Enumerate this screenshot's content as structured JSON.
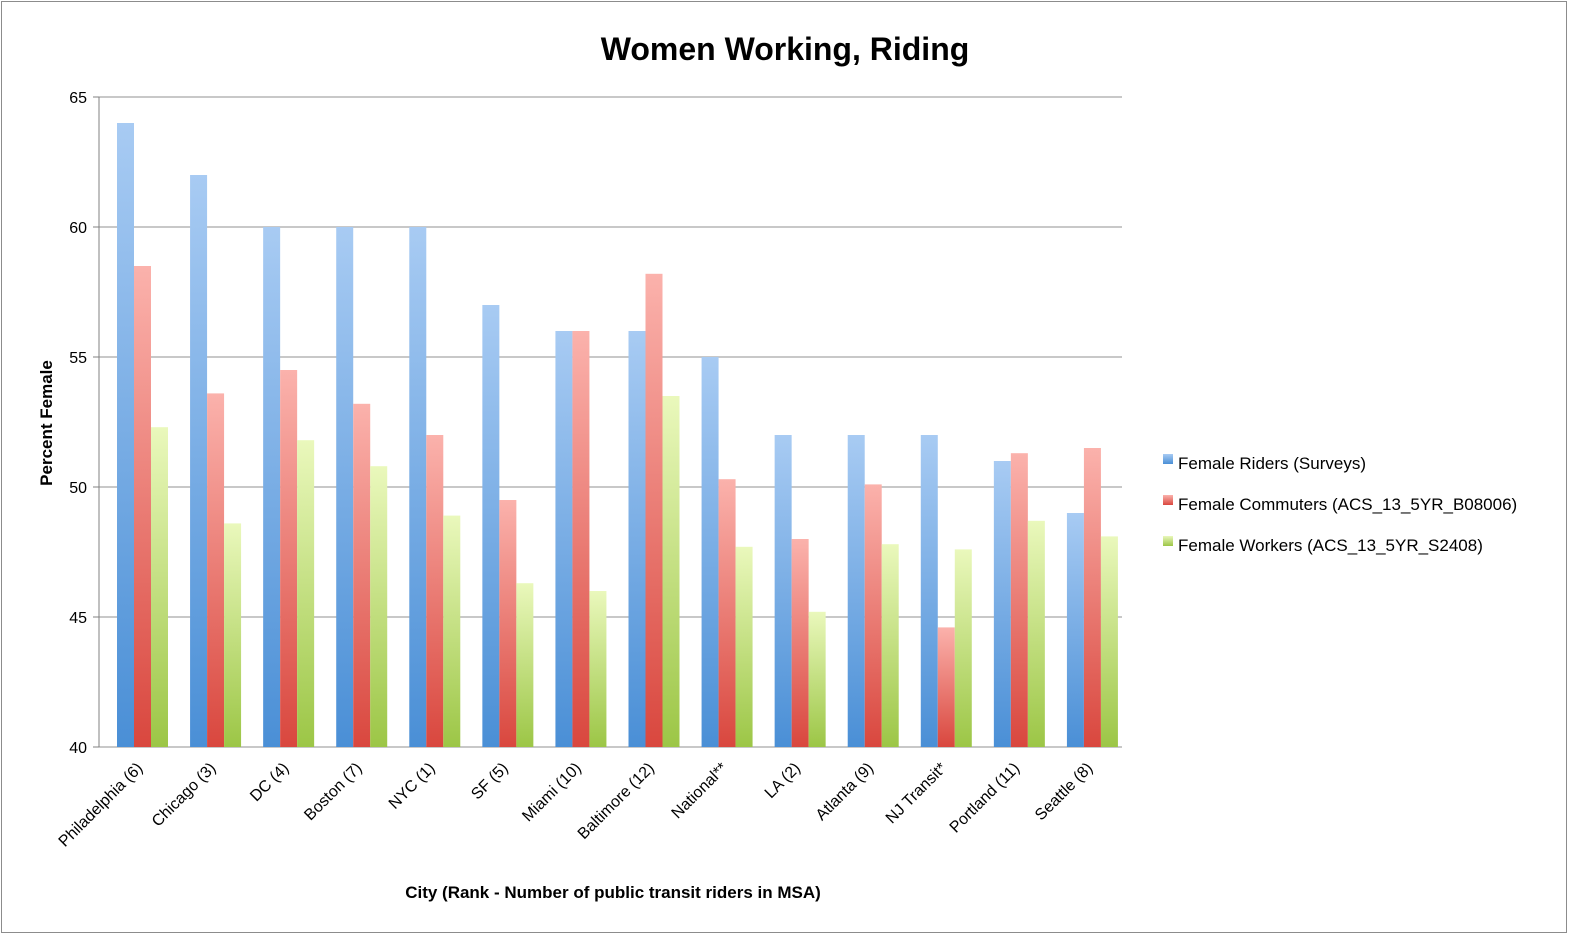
{
  "chart_data": {
    "type": "bar",
    "title": "Women Working, Riding",
    "xlabel": "City (Rank - Number of public transit riders in MSA)",
    "ylabel": "Percent Female",
    "ylim": [
      40,
      65
    ],
    "yticks": [
      40,
      45,
      50,
      55,
      60,
      65
    ],
    "grid": true,
    "legend_position": "right",
    "categories": [
      "Philadelphia (6)",
      "Chicago (3)",
      "DC (4)",
      "Boston (7)",
      "NYC (1)",
      "SF (5)",
      "Miami (10)",
      "Baltimore (12)",
      "National**",
      "LA (2)",
      "Atlanta (9)",
      "NJ Transit*",
      "Portland (11)",
      "Seattle (8)"
    ],
    "series": [
      {
        "name": "Female Riders (Surveys)",
        "color": "#5b9bd5",
        "values": [
          64,
          62,
          60,
          60,
          60,
          57,
          56,
          56,
          55,
          52,
          52,
          52,
          51,
          49
        ]
      },
      {
        "name": "Female Commuters (ACS_13_5YR_B08006)",
        "color": "#e0554c",
        "values": [
          58.5,
          53.6,
          54.5,
          53.2,
          52,
          49.5,
          56,
          58.2,
          50.3,
          48,
          50.1,
          44.6,
          51.3,
          51.5
        ]
      },
      {
        "name": "Female Workers (ACS_13_5YR_S2408)",
        "color": "#a4c94a",
        "values": [
          52.3,
          48.6,
          51.8,
          50.8,
          48.9,
          46.3,
          46,
          53.5,
          47.7,
          45.2,
          47.8,
          47.6,
          48.7,
          48.1
        ]
      }
    ]
  }
}
